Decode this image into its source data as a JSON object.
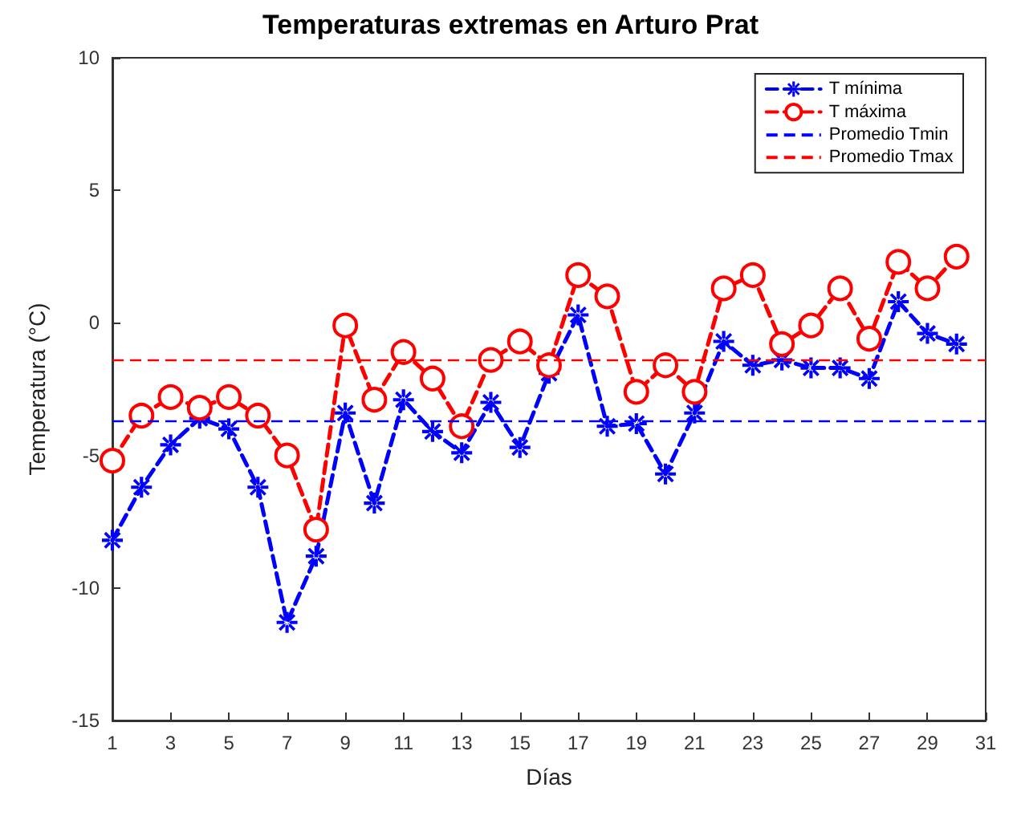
{
  "chart_data": {
    "type": "line",
    "title": "Temperaturas extremas en Arturo Prat",
    "xlabel": "Días",
    "ylabel": "Temperatura (°C)",
    "x": [
      1,
      2,
      3,
      4,
      5,
      6,
      7,
      8,
      9,
      10,
      11,
      12,
      13,
      14,
      15,
      16,
      17,
      18,
      19,
      20,
      21,
      22,
      23,
      24,
      25,
      26,
      27,
      28,
      29,
      30
    ],
    "series": [
      {
        "name": "T mínima",
        "color": "#0000ff",
        "marker": "star",
        "line_style": "dashed",
        "values": [
          -8.2,
          -6.2,
          -4.6,
          -3.6,
          -4.0,
          -6.2,
          -11.3,
          -8.8,
          -3.4,
          -6.8,
          -2.9,
          -4.1,
          -4.9,
          -3.0,
          -4.7,
          -1.9,
          0.3,
          -3.9,
          -3.8,
          -5.7,
          -3.4,
          -0.7,
          -1.6,
          -1.4,
          -1.7,
          -1.7,
          -2.1,
          0.8,
          -0.4,
          -0.8
        ]
      },
      {
        "name": "T máxima",
        "color": "#ff0000",
        "marker": "circle",
        "line_style": "dashed",
        "values": [
          -5.2,
          -3.5,
          -2.8,
          -3.2,
          -2.8,
          -3.5,
          -5.0,
          -7.8,
          -0.1,
          -2.9,
          -1.1,
          -2.1,
          -3.9,
          -1.4,
          -0.7,
          -1.6,
          1.8,
          1.0,
          -2.6,
          -1.6,
          -2.6,
          1.3,
          1.8,
          -0.8,
          -0.1,
          1.3,
          -0.6,
          2.3,
          1.3,
          2.5
        ]
      }
    ],
    "ref_lines": [
      {
        "axis": "y",
        "value": -3.7,
        "label": "Promedio Tmin",
        "color": "#0000ff",
        "line_style": "dashed"
      },
      {
        "axis": "y",
        "value": -1.4,
        "label": "Promedio Tmax",
        "color": "#ff0000",
        "line_style": "dashed"
      }
    ],
    "xlim": [
      1,
      31
    ],
    "xticks": [
      1,
      3,
      5,
      7,
      9,
      11,
      13,
      15,
      17,
      19,
      21,
      23,
      25,
      27,
      29,
      31
    ],
    "ylim": [
      -15,
      10
    ],
    "yticks": [
      -15,
      -10,
      -5,
      0,
      5,
      10
    ],
    "grid": false,
    "legend": "top right"
  }
}
